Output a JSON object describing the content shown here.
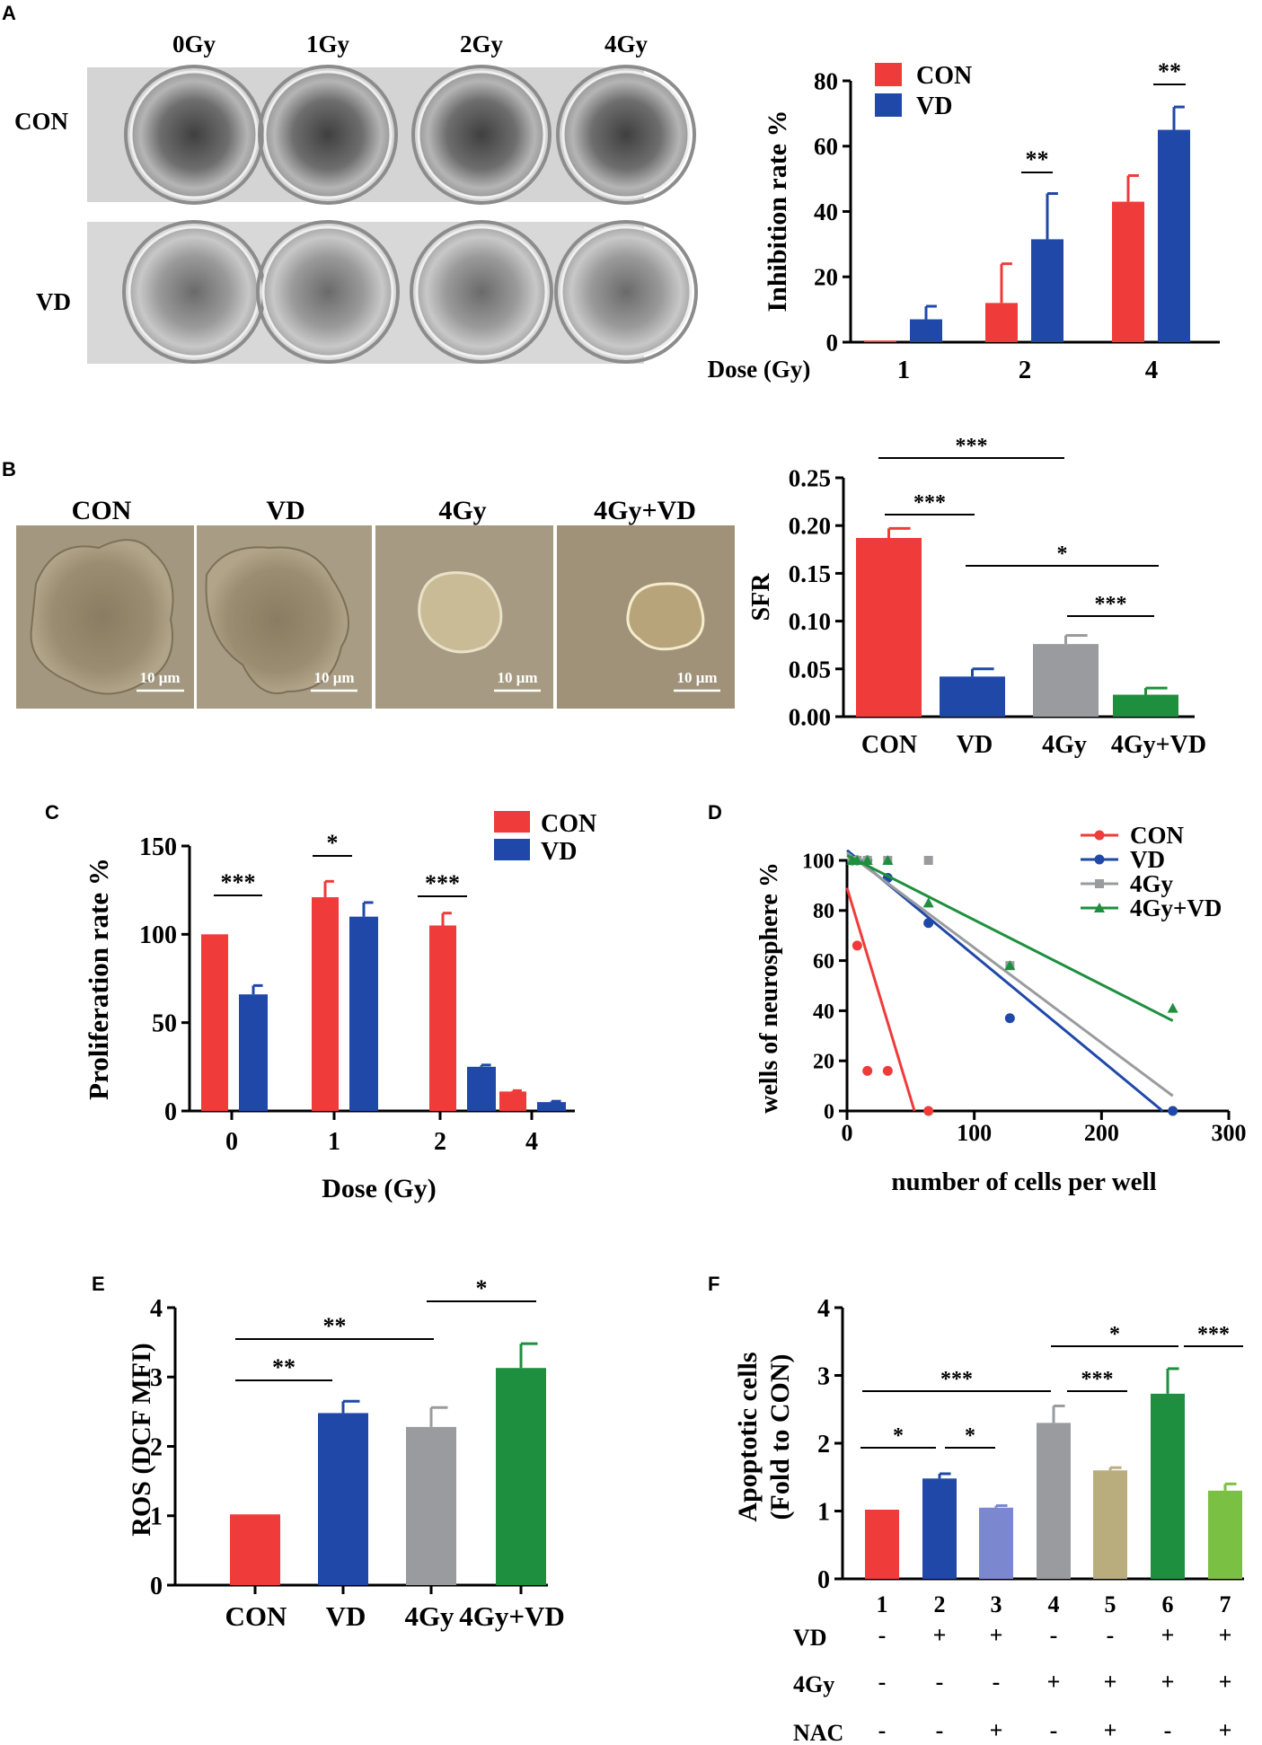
{
  "panel_labels": {
    "a": "A",
    "b": "B",
    "c": "C",
    "d": "D",
    "e": "E",
    "f": "F"
  },
  "photos_a": {
    "col_labels": [
      "0Gy",
      "1Gy",
      "2Gy",
      "4Gy"
    ],
    "row_labels": [
      "CON",
      "VD"
    ]
  },
  "photos_b": {
    "labels": [
      "CON",
      "VD",
      "4Gy",
      "4Gy+VD"
    ],
    "scale_bar": "10 μm"
  },
  "colors": {
    "red": "#ef3b3a",
    "blue": "#1f48a8",
    "gray": "#9a9b9f",
    "green": "#1d8f3e",
    "light_blue": "#7b88cf",
    "khaki": "#b9ad7e",
    "light_green": "#79c043"
  },
  "chart_data": [
    {
      "id": "A",
      "type": "bar",
      "ylabel": "Inhibition rate %",
      "xlabel": "Dose (Gy)",
      "categories": [
        "1",
        "2",
        "4"
      ],
      "yticks": [
        "0",
        "20",
        "40",
        "60",
        "80"
      ],
      "ylim": [
        0,
        80
      ],
      "series": [
        {
          "name": "CON",
          "values": [
            0.5,
            12,
            43
          ],
          "errors": [
            0,
            12,
            8
          ]
        },
        {
          "name": "VD",
          "values": [
            7,
            31.5,
            65
          ],
          "errors": [
            4,
            14,
            7
          ]
        }
      ],
      "legend": [
        "CON",
        "VD"
      ],
      "significance": [
        "**",
        "**"
      ]
    },
    {
      "id": "B",
      "type": "bar",
      "ylabel": "SFR",
      "categories": [
        "CON",
        "VD",
        "4Gy",
        "4Gy+VD"
      ],
      "values": [
        0.187,
        0.042,
        0.076,
        0.023
      ],
      "errors": [
        0.01,
        0.008,
        0.009,
        0.007
      ],
      "yticks": [
        "0.00",
        "0.05",
        "0.10",
        "0.15",
        "0.20",
        "0.25"
      ],
      "ylim": [
        0,
        0.25
      ],
      "significance": [
        "***",
        "***",
        "*",
        "***"
      ]
    },
    {
      "id": "C",
      "type": "bar",
      "ylabel": "Proliferation rate %",
      "xlabel": "Dose (Gy)",
      "categories": [
        "0",
        "1",
        "2",
        "4"
      ],
      "yticks": [
        "0",
        "50",
        "100",
        "150"
      ],
      "ylim": [
        0,
        150
      ],
      "series": [
        {
          "name": "CON",
          "values": [
            100,
            121,
            105,
            11
          ],
          "errors": [
            0,
            9,
            7,
            0.5
          ]
        },
        {
          "name": "VD",
          "values": [
            66,
            110,
            25,
            5
          ],
          "errors": [
            5,
            8,
            1,
            0.5
          ]
        }
      ],
      "legend": [
        "CON",
        "VD"
      ],
      "significance": [
        "***",
        "*",
        "***"
      ]
    },
    {
      "id": "D",
      "type": "scatter",
      "ylabel": "wells of neurosphere %",
      "xlabel": "number of cells per well",
      "xticks": [
        "0",
        "100",
        "200",
        "300"
      ],
      "xlim": [
        0,
        300
      ],
      "yticks": [
        "0",
        "20",
        "40",
        "60",
        "80",
        "100"
      ],
      "ylim": [
        0,
        100
      ],
      "series": [
        {
          "name": "CON",
          "x": [
            4,
            8,
            16,
            32,
            64
          ],
          "y": [
            100,
            66,
            16,
            16,
            0
          ],
          "line": [
            [
              0,
              89
            ],
            [
              53,
              0
            ]
          ]
        },
        {
          "name": "VD",
          "x": [
            4,
            8,
            16,
            32,
            64,
            128,
            256
          ],
          "y": [
            100,
            100,
            100,
            93,
            75,
            37,
            0
          ],
          "line": [
            [
              0,
              104
            ],
            [
              248,
              0
            ]
          ]
        },
        {
          "name": "4Gy",
          "x": [
            4,
            8,
            16,
            32,
            64,
            128
          ],
          "y": [
            100,
            100,
            100,
            100,
            100,
            58
          ],
          "line": [
            [
              0,
              103
            ],
            [
              256,
              6
            ]
          ]
        },
        {
          "name": "4Gy+VD",
          "x": [
            4,
            8,
            16,
            32,
            64,
            128,
            256
          ],
          "y": [
            100,
            100,
            100,
            100,
            83,
            58,
            41
          ],
          "line": [
            [
              0,
              102
            ],
            [
              256,
              36
            ]
          ]
        }
      ],
      "legend": [
        "CON",
        "VD",
        "4Gy",
        "4Gy+VD"
      ]
    },
    {
      "id": "E",
      "type": "bar",
      "ylabel": "ROS (DCF MFI)",
      "categories": [
        "CON",
        "VD",
        "4Gy",
        "4Gy+VD"
      ],
      "values": [
        1.02,
        2.48,
        2.28,
        3.13
      ],
      "errors": [
        0,
        0.17,
        0.28,
        0.35
      ],
      "yticks": [
        "0",
        "1",
        "2",
        "3",
        "4"
      ],
      "ylim": [
        0,
        4
      ],
      "significance": [
        "**",
        "**",
        "*"
      ]
    },
    {
      "id": "F",
      "type": "bar",
      "ylabel": "Apoptotic cells",
      "ylabel2": "(Fold to CON)",
      "categories": [
        "1",
        "2",
        "3",
        "4",
        "5",
        "6",
        "7"
      ],
      "values": [
        1.02,
        1.48,
        1.05,
        2.3,
        1.6,
        2.73,
        1.3
      ],
      "errors": [
        0,
        0.07,
        0.03,
        0.25,
        0.04,
        0.37,
        0.1
      ],
      "yticks": [
        "0",
        "1",
        "2",
        "3",
        "4"
      ],
      "ylim": [
        0,
        4
      ],
      "conditions": [
        {
          "label": "VD",
          "values": [
            "-",
            "+",
            "+",
            "-",
            "-",
            "+",
            "+"
          ]
        },
        {
          "label": "4Gy",
          "values": [
            "-",
            "-",
            "-",
            "+",
            "+",
            "+",
            "+"
          ]
        },
        {
          "label": "NAC",
          "values": [
            "-",
            "-",
            "+",
            "-",
            "+",
            "-",
            "+"
          ]
        }
      ],
      "significance": [
        "*",
        "*",
        "***",
        "***",
        "*",
        "***"
      ]
    }
  ]
}
